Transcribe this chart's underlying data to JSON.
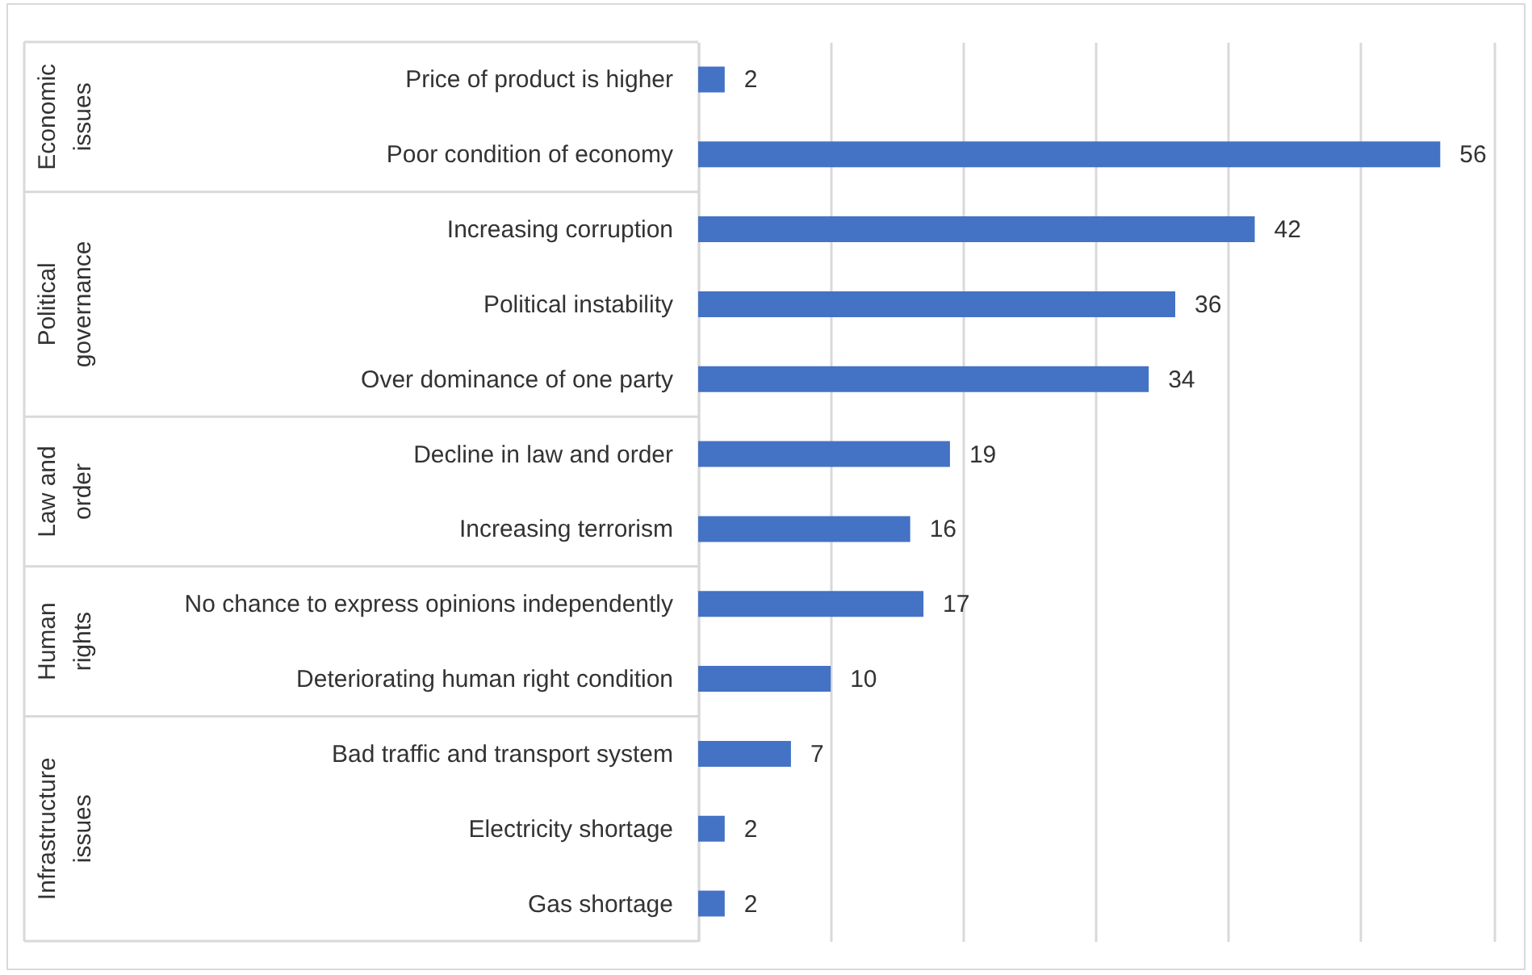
{
  "chart_data": {
    "type": "bar",
    "orientation": "horizontal",
    "categories": [
      "Price of product is higher",
      "Poor condition of economy",
      "Increasing corruption",
      "Political instability",
      "Over dominance of one party",
      "Decline in law and order",
      "Increasing terrorism",
      "No chance to express opinions independently",
      "Deteriorating human right condition",
      "Bad traffic and transport system",
      "Electricity shortage",
      "Gas shortage"
    ],
    "values": [
      2,
      56,
      42,
      36,
      34,
      19,
      16,
      17,
      10,
      7,
      2,
      2
    ],
    "color": "#4472c4",
    "xlim": [
      0,
      60
    ],
    "xticks": [
      {
        "value": 0,
        "label": null
      },
      {
        "value": 10,
        "label": null
      },
      {
        "value": 20,
        "label": null
      },
      {
        "value": 30,
        "label": null
      },
      {
        "value": 40,
        "label": null
      },
      {
        "value": 50,
        "label": null
      },
      {
        "value": 60,
        "label": null
      }
    ],
    "grid": "x",
    "tick_labels": "y",
    "data_labels": true,
    "annotations": [
      "Economic issues",
      "Political governance",
      "Law and order",
      "Human rights",
      "Infrastructure issues"
    ]
  }
}
